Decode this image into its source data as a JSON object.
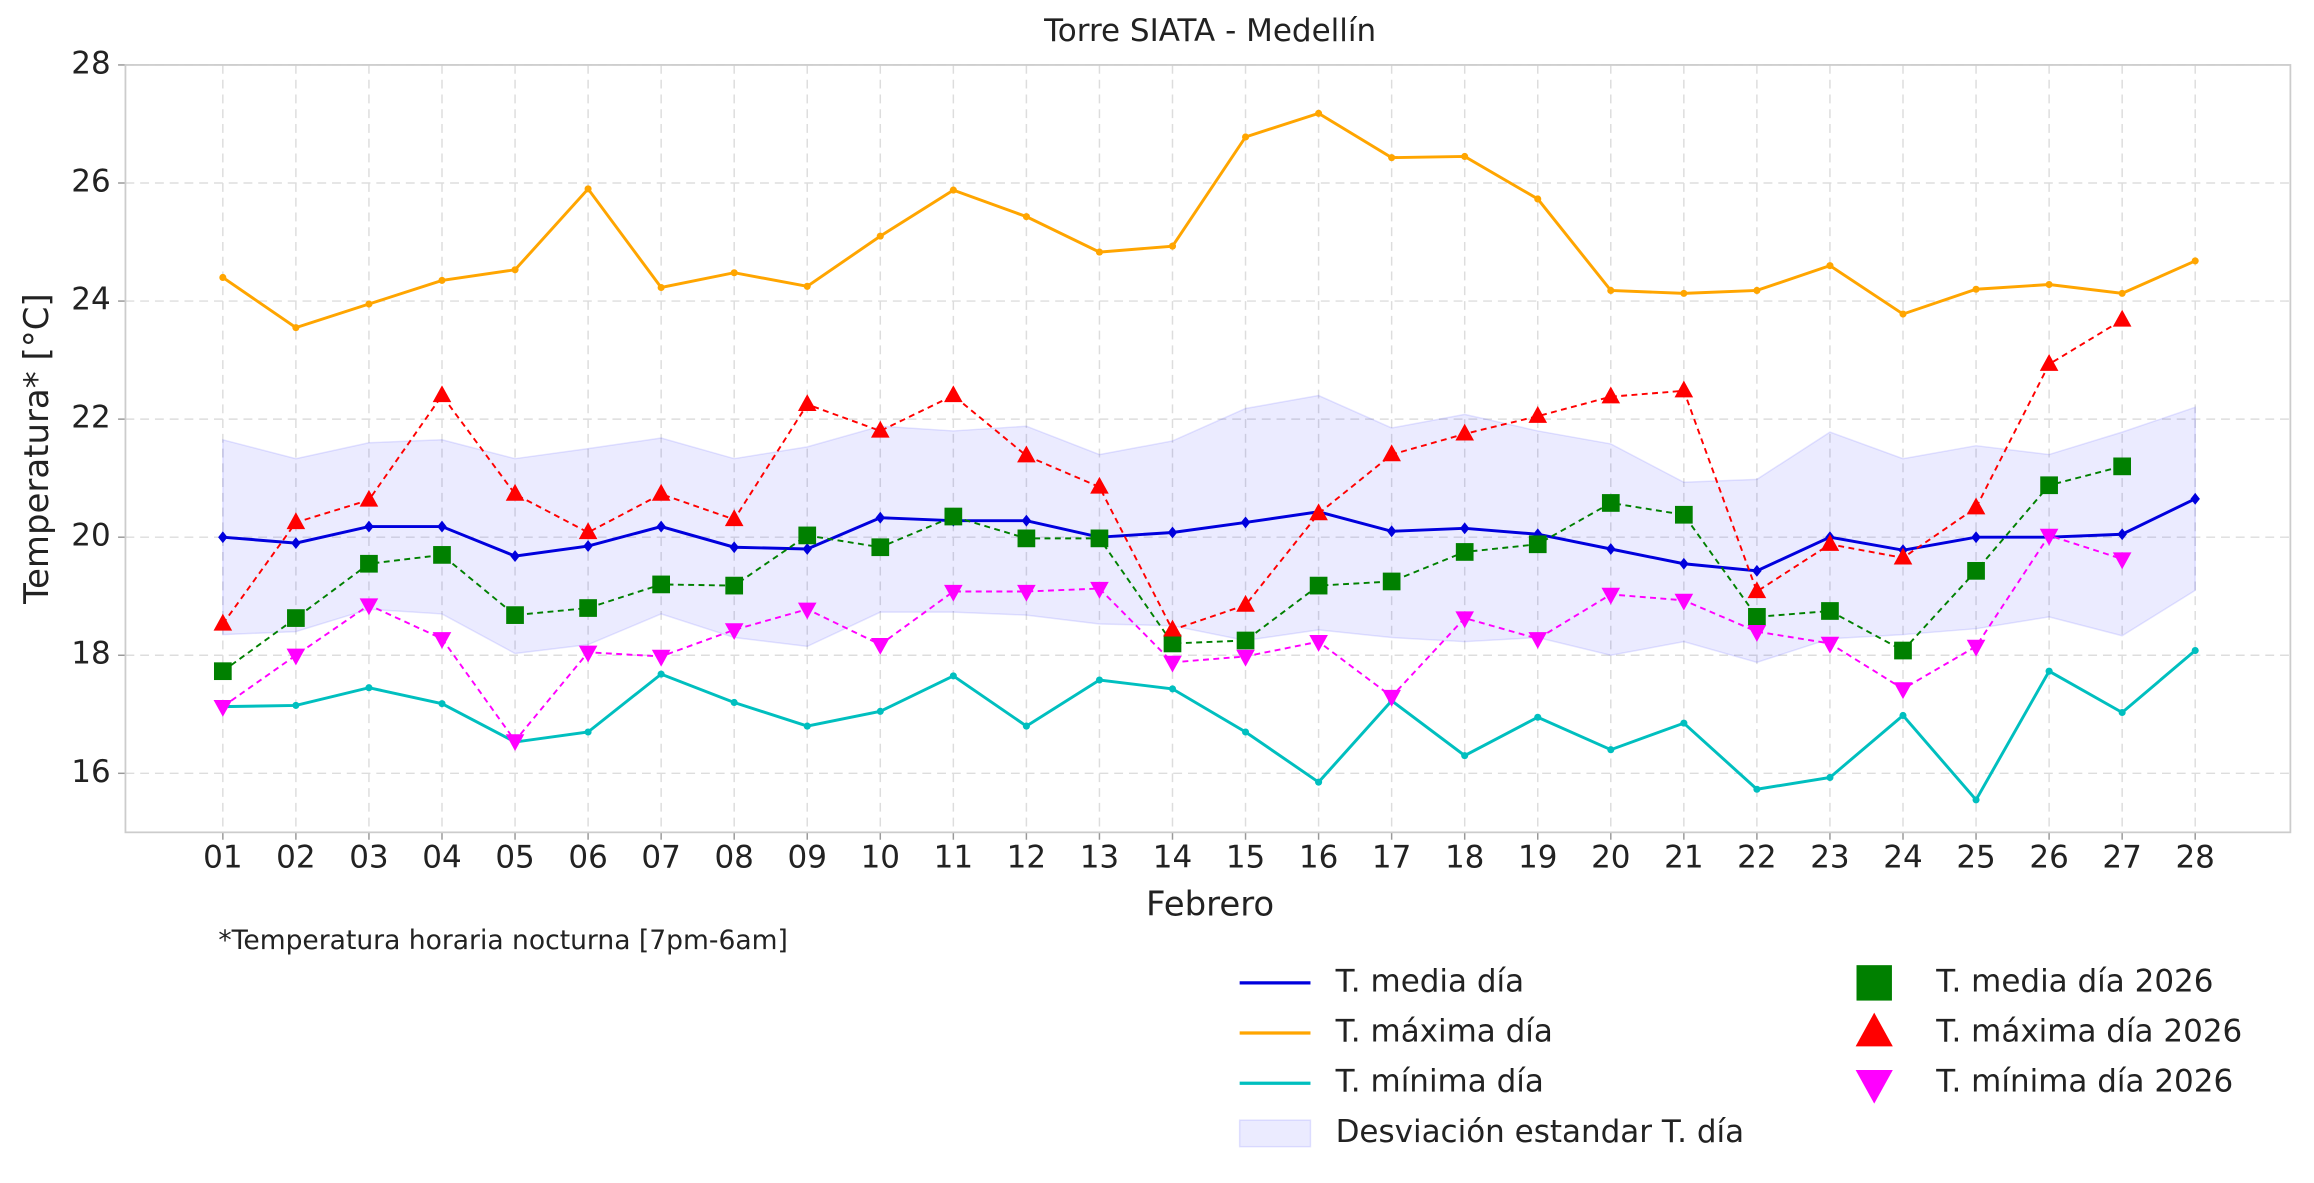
{
  "chart_data": {
    "type": "line",
    "title": "Torre SIATA - Medellín",
    "x_label": "Febrero",
    "y_label": "Temperatura* [°C]",
    "footnote": "*Temperatura horaria nocturna [7pm-6am]",
    "categories": [
      "01",
      "02",
      "03",
      "04",
      "05",
      "06",
      "07",
      "08",
      "09",
      "10",
      "11",
      "12",
      "13",
      "14",
      "15",
      "16",
      "17",
      "18",
      "19",
      "20",
      "21",
      "22",
      "23",
      "24",
      "25",
      "26",
      "27",
      "28"
    ],
    "ylim": [
      15,
      28
    ],
    "yticks": [
      16,
      18,
      20,
      22,
      24,
      26,
      28
    ],
    "grid": true,
    "band": {
      "name": "Desviación estandar T. día",
      "color": "#0000ff",
      "high": [
        21.65,
        21.33,
        21.6,
        21.65,
        21.33,
        21.5,
        21.68,
        21.33,
        21.53,
        21.88,
        21.8,
        21.88,
        21.4,
        21.63,
        22.18,
        22.4,
        21.85,
        22.08,
        21.8,
        21.58,
        20.93,
        20.98,
        21.78,
        21.33,
        21.55,
        21.4,
        21.78,
        22.2
      ],
      "low": [
        18.35,
        18.4,
        18.78,
        18.7,
        18.03,
        18.18,
        18.7,
        18.3,
        18.15,
        18.73,
        18.73,
        18.68,
        18.53,
        18.5,
        18.25,
        18.43,
        18.3,
        18.23,
        18.3,
        18.0,
        18.23,
        17.88,
        18.28,
        18.35,
        18.45,
        18.65,
        18.33,
        19.1
      ]
    },
    "series": [
      {
        "name": "T. media día",
        "color": "#0000dd",
        "marker": "D",
        "linestyle": "solid",
        "values": [
          20.0,
          19.9,
          20.18,
          20.18,
          19.68,
          19.85,
          20.18,
          19.83,
          19.8,
          20.33,
          20.28,
          20.28,
          20.0,
          20.08,
          20.25,
          20.43,
          20.1,
          20.15,
          20.05,
          19.8,
          19.55,
          19.43,
          20.0,
          19.78,
          20.0,
          20.0,
          20.05,
          20.65
        ]
      },
      {
        "name": "T. máxima día",
        "color": "#ffa500",
        "marker": "o",
        "linestyle": "solid",
        "values": [
          24.4,
          23.55,
          23.95,
          24.35,
          24.53,
          25.9,
          24.23,
          24.48,
          24.25,
          25.1,
          25.88,
          25.43,
          24.83,
          24.93,
          26.78,
          27.18,
          26.43,
          26.45,
          25.73,
          24.18,
          24.13,
          24.18,
          24.6,
          23.78,
          24.2,
          24.28,
          24.13,
          24.68
        ]
      },
      {
        "name": "T. mínima día",
        "color": "#00bfbf",
        "marker": "o",
        "linestyle": "solid",
        "values": [
          17.13,
          17.15,
          17.45,
          17.18,
          16.53,
          16.7,
          17.68,
          17.2,
          16.8,
          17.05,
          17.65,
          16.8,
          17.58,
          17.43,
          16.7,
          15.85,
          17.23,
          16.3,
          16.95,
          16.4,
          16.85,
          15.73,
          15.93,
          16.98,
          15.55,
          17.73,
          17.03,
          18.08
        ]
      },
      {
        "name": "T. media día 2026",
        "color": "#008000",
        "marker": "s",
        "linestyle": "dashed",
        "values": [
          17.73,
          18.63,
          19.55,
          19.7,
          18.68,
          18.8,
          19.2,
          19.18,
          20.03,
          19.83,
          20.35,
          19.98,
          19.98,
          18.2,
          18.25,
          19.18,
          19.25,
          19.75,
          19.88,
          20.58,
          20.38,
          18.65,
          18.75,
          18.08,
          19.43,
          20.88,
          21.2,
          null
        ]
      },
      {
        "name": "T. máxima día 2026",
        "color": "#ff0000",
        "marker": "^",
        "linestyle": "dashed",
        "values": [
          18.53,
          20.25,
          20.63,
          22.4,
          20.73,
          20.08,
          20.73,
          20.3,
          22.25,
          21.8,
          22.4,
          21.38,
          20.85,
          18.43,
          18.85,
          20.4,
          21.4,
          21.75,
          22.05,
          22.38,
          22.48,
          19.08,
          19.88,
          19.65,
          20.5,
          22.93,
          23.68,
          null
        ]
      },
      {
        "name": "T. mínima día 2026",
        "color": "#ff00ff",
        "marker": "v",
        "linestyle": "dashed",
        "values": [
          17.13,
          18.0,
          18.85,
          18.28,
          16.55,
          18.05,
          17.98,
          18.43,
          18.78,
          18.18,
          19.08,
          19.08,
          19.13,
          17.88,
          17.98,
          18.23,
          17.3,
          18.63,
          18.28,
          19.03,
          18.93,
          18.4,
          18.2,
          17.43,
          18.15,
          20.03,
          19.63,
          null
        ]
      }
    ]
  }
}
